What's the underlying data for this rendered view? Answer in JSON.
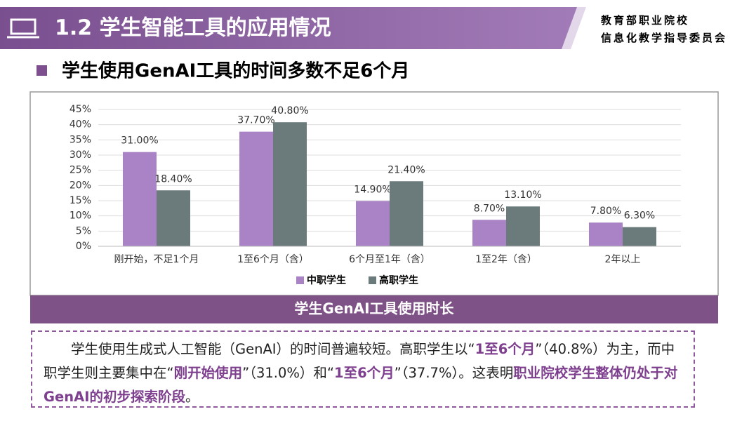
{
  "header": {
    "title": "1.2 学生智能工具的应用情况",
    "org": [
      "教育部职业院校",
      "信息化教学指导委员会"
    ]
  },
  "subtitle": "学生使用GenAI工具的时间多数不足6个月",
  "chart_data": {
    "type": "bar",
    "title": "学生GenAI工具使用时长",
    "categories": [
      "刚开始，不足1个月",
      "1至6个月（含）",
      "6个月至1年（含）",
      "1至2年（含）",
      "2年以上"
    ],
    "series": [
      {
        "name": "中职学生",
        "color": "#a983c6",
        "values": [
          31.0,
          37.7,
          14.9,
          8.7,
          7.8
        ],
        "value_labels": [
          "31.00%",
          "37.70%",
          "14.90%",
          "8.70%",
          "7.80%"
        ]
      },
      {
        "name": "高职学生",
        "color": "#6b7b7c",
        "values": [
          18.4,
          40.8,
          21.4,
          13.1,
          6.3
        ],
        "value_labels": [
          "18.40%",
          "40.80%",
          "21.40%",
          "13.10%",
          "6.30%"
        ]
      }
    ],
    "ylim": [
      0,
      45
    ],
    "yticks": [
      {
        "value": 0,
        "label": "0%"
      },
      {
        "value": 5,
        "label": "5%"
      },
      {
        "value": 10,
        "label": "10%"
      },
      {
        "value": 15,
        "label": "15%"
      },
      {
        "value": 20,
        "label": "20%"
      },
      {
        "value": 25,
        "label": "25%"
      },
      {
        "value": 30,
        "label": "30%"
      },
      {
        "value": 35,
        "label": "35%"
      },
      {
        "value": 40,
        "label": "40%"
      },
      {
        "value": 45,
        "label": "45%"
      }
    ],
    "grid": true,
    "legend": "bottom"
  },
  "summary": [
    {
      "text": "学生使用生成式人工智能（GenAI）的时间普遍较短。高职学生以“",
      "bold": false
    },
    {
      "text": "1至6个月",
      "bold": true
    },
    {
      "text": "”（40.8%）为主，而中职学生则主要集中在“",
      "bold": false
    },
    {
      "text": "刚开始使用",
      "bold": true
    },
    {
      "text": "”（31.0%）和“",
      "bold": false
    },
    {
      "text": "1至6个月",
      "bold": true
    },
    {
      "text": "”（37.7%）。这表明",
      "bold": false
    },
    {
      "text": "职业院校学生整体仍处于对GenAI的初步探索阶段",
      "bold": true
    },
    {
      "text": "。",
      "bold": false
    }
  ]
}
